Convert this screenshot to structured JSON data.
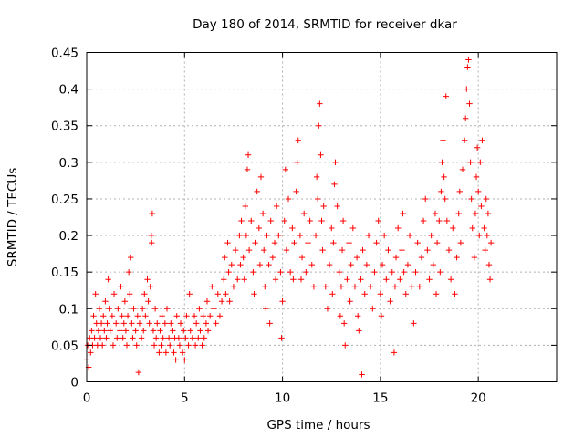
{
  "chart_data": {
    "type": "scatter",
    "title": "Day 180 of 2014, SRMTID for receiver dkar",
    "xlabel": "GPS time / hours",
    "ylabel": "SRMTID / TECUs",
    "xlim": [
      0,
      24
    ],
    "ylim": [
      0,
      0.45
    ],
    "xticks": [
      0,
      5,
      10,
      15,
      20
    ],
    "xtick_labels": [
      "0",
      "5",
      "10",
      "15",
      "20"
    ],
    "yticks": [
      0,
      0.05,
      0.1,
      0.15,
      0.2,
      0.25,
      0.3,
      0.35,
      0.4,
      0.45
    ],
    "ytick_labels": [
      "0",
      "0.05",
      "0.1",
      "0.15",
      "0.2",
      "0.25",
      "0.3",
      "0.35",
      "0.4",
      "0.45"
    ],
    "grid": true,
    "marker": "+",
    "color": "#ff0000",
    "series": [
      {
        "name": "SRMTID",
        "points": [
          [
            0.0,
            0.03
          ],
          [
            0.05,
            0.05
          ],
          [
            0.1,
            0.02
          ],
          [
            0.15,
            0.06
          ],
          [
            0.2,
            0.04
          ],
          [
            0.25,
            0.07
          ],
          [
            0.3,
            0.05
          ],
          [
            0.35,
            0.09
          ],
          [
            0.4,
            0.06
          ],
          [
            0.45,
            0.12
          ],
          [
            0.5,
            0.08
          ],
          [
            0.55,
            0.05
          ],
          [
            0.6,
            0.07
          ],
          [
            0.65,
            0.1
          ],
          [
            0.7,
            0.06
          ],
          [
            0.75,
            0.08
          ],
          [
            0.8,
            0.05
          ],
          [
            0.85,
            0.09
          ],
          [
            0.9,
            0.07
          ],
          [
            0.95,
            0.11
          ],
          [
            1.0,
            0.06
          ],
          [
            1.05,
            0.08
          ],
          [
            1.1,
            0.14
          ],
          [
            1.15,
            0.1
          ],
          [
            1.2,
            0.07
          ],
          [
            1.3,
            0.09
          ],
          [
            1.35,
            0.05
          ],
          [
            1.4,
            0.12
          ],
          [
            1.5,
            0.08
          ],
          [
            1.55,
            0.06
          ],
          [
            1.6,
            0.1
          ],
          [
            1.7,
            0.07
          ],
          [
            1.75,
            0.13
          ],
          [
            1.8,
            0.09
          ],
          [
            1.85,
            0.06
          ],
          [
            1.9,
            0.08
          ],
          [
            1.95,
            0.11
          ],
          [
            2.0,
            0.07
          ],
          [
            2.05,
            0.05
          ],
          [
            2.1,
            0.09
          ],
          [
            2.15,
            0.15
          ],
          [
            2.2,
            0.12
          ],
          [
            2.25,
            0.17
          ],
          [
            2.3,
            0.08
          ],
          [
            2.35,
            0.06
          ],
          [
            2.4,
            0.1
          ],
          [
            2.5,
            0.07
          ],
          [
            2.55,
            0.05
          ],
          [
            2.6,
            0.09
          ],
          [
            2.65,
            0.013
          ],
          [
            2.7,
            0.08
          ],
          [
            2.8,
            0.06
          ],
          [
            2.85,
            0.1
          ],
          [
            2.9,
            0.07
          ],
          [
            2.95,
            0.12
          ],
          [
            3.0,
            0.09
          ],
          [
            3.1,
            0.14
          ],
          [
            3.15,
            0.11
          ],
          [
            3.2,
            0.08
          ],
          [
            3.25,
            0.13
          ],
          [
            3.3,
            0.2
          ],
          [
            3.32,
            0.19
          ],
          [
            3.35,
            0.23
          ],
          [
            3.4,
            0.07
          ],
          [
            3.45,
            0.05
          ],
          [
            3.5,
            0.1
          ],
          [
            3.55,
            0.06
          ],
          [
            3.6,
            0.08
          ],
          [
            3.7,
            0.04
          ],
          [
            3.75,
            0.07
          ],
          [
            3.8,
            0.05
          ],
          [
            3.85,
            0.09
          ],
          [
            3.9,
            0.06
          ],
          [
            4.0,
            0.08
          ],
          [
            4.05,
            0.04
          ],
          [
            4.1,
            0.1
          ],
          [
            4.2,
            0.06
          ],
          [
            4.25,
            0.05
          ],
          [
            4.3,
            0.08
          ],
          [
            4.4,
            0.07
          ],
          [
            4.45,
            0.04
          ],
          [
            4.5,
            0.06
          ],
          [
            4.55,
            0.03
          ],
          [
            4.6,
            0.09
          ],
          [
            4.7,
            0.06
          ],
          [
            4.75,
            0.05
          ],
          [
            4.8,
            0.08
          ],
          [
            4.9,
            0.04
          ],
          [
            4.95,
            0.07
          ],
          [
            5.0,
            0.03
          ],
          [
            5.05,
            0.06
          ],
          [
            5.1,
            0.09
          ],
          [
            5.2,
            0.05
          ],
          [
            5.25,
            0.12
          ],
          [
            5.3,
            0.07
          ],
          [
            5.4,
            0.06
          ],
          [
            5.5,
            0.09
          ],
          [
            5.55,
            0.05
          ],
          [
            5.6,
            0.08
          ],
          [
            5.7,
            0.06
          ],
          [
            5.75,
            0.1
          ],
          [
            5.8,
            0.07
          ],
          [
            5.9,
            0.05
          ],
          [
            5.95,
            0.09
          ],
          [
            6.0,
            0.06
          ],
          [
            6.1,
            0.08
          ],
          [
            6.15,
            0.11
          ],
          [
            6.2,
            0.07
          ],
          [
            6.3,
            0.09
          ],
          [
            6.4,
            0.13
          ],
          [
            6.5,
            0.1
          ],
          [
            6.6,
            0.08
          ],
          [
            6.7,
            0.12
          ],
          [
            6.8,
            0.09
          ],
          [
            6.9,
            0.11
          ],
          [
            7.0,
            0.14
          ],
          [
            7.05,
            0.17
          ],
          [
            7.1,
            0.12
          ],
          [
            7.2,
            0.19
          ],
          [
            7.25,
            0.15
          ],
          [
            7.3,
            0.11
          ],
          [
            7.4,
            0.16
          ],
          [
            7.5,
            0.13
          ],
          [
            7.6,
            0.18
          ],
          [
            7.7,
            0.14
          ],
          [
            7.8,
            0.2
          ],
          [
            7.85,
            0.16
          ],
          [
            7.9,
            0.22
          ],
          [
            8.0,
            0.17
          ],
          [
            8.05,
            0.14
          ],
          [
            8.1,
            0.24
          ],
          [
            8.15,
            0.2
          ],
          [
            8.2,
            0.29
          ],
          [
            8.25,
            0.31
          ],
          [
            8.3,
            0.18
          ],
          [
            8.4,
            0.22
          ],
          [
            8.5,
            0.15
          ],
          [
            8.55,
            0.12
          ],
          [
            8.6,
            0.19
          ],
          [
            8.7,
            0.26
          ],
          [
            8.8,
            0.21
          ],
          [
            8.85,
            0.16
          ],
          [
            8.9,
            0.28
          ],
          [
            9.0,
            0.23
          ],
          [
            9.05,
            0.18
          ],
          [
            9.1,
            0.13
          ],
          [
            9.15,
            0.1
          ],
          [
            9.2,
            0.2
          ],
          [
            9.3,
            0.16
          ],
          [
            9.35,
            0.08
          ],
          [
            9.4,
            0.22
          ],
          [
            9.5,
            0.17
          ],
          [
            9.6,
            0.19
          ],
          [
            9.65,
            0.14
          ],
          [
            9.7,
            0.24
          ],
          [
            9.8,
            0.2
          ],
          [
            9.9,
            0.15
          ],
          [
            9.95,
            0.06
          ],
          [
            10.0,
            0.11
          ],
          [
            10.1,
            0.22
          ],
          [
            10.15,
            0.29
          ],
          [
            10.2,
            0.18
          ],
          [
            10.3,
            0.25
          ],
          [
            10.4,
            0.15
          ],
          [
            10.5,
            0.21
          ],
          [
            10.55,
            0.14
          ],
          [
            10.6,
            0.19
          ],
          [
            10.7,
            0.26
          ],
          [
            10.75,
            0.3
          ],
          [
            10.8,
            0.33
          ],
          [
            10.9,
            0.2
          ],
          [
            10.95,
            0.14
          ],
          [
            11.0,
            0.17
          ],
          [
            11.1,
            0.23
          ],
          [
            11.2,
            0.15
          ],
          [
            11.3,
            0.19
          ],
          [
            11.4,
            0.22
          ],
          [
            11.5,
            0.16
          ],
          [
            11.6,
            0.13
          ],
          [
            11.7,
            0.2
          ],
          [
            11.75,
            0.28
          ],
          [
            11.8,
            0.25
          ],
          [
            11.85,
            0.35
          ],
          [
            11.9,
            0.38
          ],
          [
            11.95,
            0.31
          ],
          [
            12.0,
            0.22
          ],
          [
            12.05,
            0.18
          ],
          [
            12.1,
            0.24
          ],
          [
            12.2,
            0.13
          ],
          [
            12.3,
            0.1
          ],
          [
            12.4,
            0.16
          ],
          [
            12.5,
            0.21
          ],
          [
            12.55,
            0.12
          ],
          [
            12.6,
            0.19
          ],
          [
            12.65,
            0.27
          ],
          [
            12.7,
            0.3
          ],
          [
            12.8,
            0.24
          ],
          [
            12.9,
            0.15
          ],
          [
            12.95,
            0.09
          ],
          [
            13.0,
            0.13
          ],
          [
            13.05,
            0.18
          ],
          [
            13.1,
            0.22
          ],
          [
            13.15,
            0.08
          ],
          [
            13.2,
            0.05
          ],
          [
            13.3,
            0.14
          ],
          [
            13.4,
            0.19
          ],
          [
            13.45,
            0.11
          ],
          [
            13.5,
            0.16
          ],
          [
            13.6,
            0.21
          ],
          [
            13.7,
            0.13
          ],
          [
            13.8,
            0.17
          ],
          [
            13.85,
            0.09
          ],
          [
            13.9,
            0.07
          ],
          [
            14.0,
            0.14
          ],
          [
            14.05,
            0.01
          ],
          [
            14.1,
            0.18
          ],
          [
            14.2,
            0.12
          ],
          [
            14.3,
            0.16
          ],
          [
            14.4,
            0.2
          ],
          [
            14.5,
            0.13
          ],
          [
            14.6,
            0.1
          ],
          [
            14.7,
            0.15
          ],
          [
            14.8,
            0.19
          ],
          [
            14.9,
            0.22
          ],
          [
            15.0,
            0.12
          ],
          [
            15.05,
            0.09
          ],
          [
            15.1,
            0.16
          ],
          [
            15.2,
            0.2
          ],
          [
            15.3,
            0.14
          ],
          [
            15.4,
            0.18
          ],
          [
            15.5,
            0.11
          ],
          [
            15.6,
            0.15
          ],
          [
            15.7,
            0.04
          ],
          [
            15.75,
            0.13
          ],
          [
            15.8,
            0.17
          ],
          [
            15.9,
            0.21
          ],
          [
            16.0,
            0.14
          ],
          [
            16.1,
            0.18
          ],
          [
            16.15,
            0.23
          ],
          [
            16.2,
            0.15
          ],
          [
            16.3,
            0.12
          ],
          [
            16.4,
            0.16
          ],
          [
            16.5,
            0.2
          ],
          [
            16.6,
            0.13
          ],
          [
            16.7,
            0.08
          ],
          [
            16.8,
            0.15
          ],
          [
            16.9,
            0.19
          ],
          [
            17.0,
            0.13
          ],
          [
            17.1,
            0.17
          ],
          [
            17.2,
            0.22
          ],
          [
            17.3,
            0.25
          ],
          [
            17.4,
            0.18
          ],
          [
            17.5,
            0.14
          ],
          [
            17.6,
            0.2
          ],
          [
            17.7,
            0.16
          ],
          [
            17.8,
            0.23
          ],
          [
            17.85,
            0.12
          ],
          [
            17.9,
            0.19
          ],
          [
            18.0,
            0.22
          ],
          [
            18.05,
            0.15
          ],
          [
            18.1,
            0.26
          ],
          [
            18.15,
            0.3
          ],
          [
            18.2,
            0.33
          ],
          [
            18.25,
            0.28
          ],
          [
            18.3,
            0.25
          ],
          [
            18.35,
            0.39
          ],
          [
            18.4,
            0.22
          ],
          [
            18.5,
            0.18
          ],
          [
            18.6,
            0.14
          ],
          [
            18.7,
            0.21
          ],
          [
            18.8,
            0.12
          ],
          [
            18.9,
            0.17
          ],
          [
            19.0,
            0.23
          ],
          [
            19.05,
            0.26
          ],
          [
            19.1,
            0.19
          ],
          [
            19.2,
            0.29
          ],
          [
            19.3,
            0.33
          ],
          [
            19.35,
            0.36
          ],
          [
            19.4,
            0.4
          ],
          [
            19.45,
            0.43
          ],
          [
            19.5,
            0.44
          ],
          [
            19.55,
            0.38
          ],
          [
            19.6,
            0.3
          ],
          [
            19.65,
            0.25
          ],
          [
            19.7,
            0.21
          ],
          [
            19.8,
            0.17
          ],
          [
            19.85,
            0.23
          ],
          [
            19.9,
            0.28
          ],
          [
            19.95,
            0.32
          ],
          [
            20.0,
            0.26
          ],
          [
            20.05,
            0.2
          ],
          [
            20.1,
            0.3
          ],
          [
            20.15,
            0.24
          ],
          [
            20.2,
            0.33
          ],
          [
            20.3,
            0.21
          ],
          [
            20.35,
            0.18
          ],
          [
            20.4,
            0.25
          ],
          [
            20.45,
            0.2
          ],
          [
            20.5,
            0.23
          ],
          [
            20.55,
            0.16
          ],
          [
            20.6,
            0.14
          ],
          [
            20.65,
            0.19
          ]
        ]
      }
    ]
  }
}
